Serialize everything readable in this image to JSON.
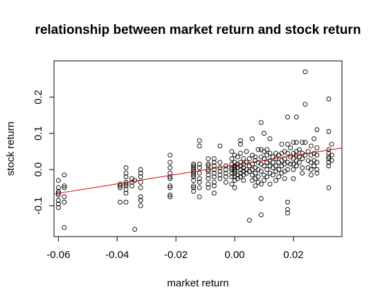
{
  "chart_data": {
    "type": "scatter",
    "title": "relationship between market return and stock return",
    "xlabel": "market return",
    "ylabel": "stock return",
    "xlim": [
      -0.0615,
      0.0365
    ],
    "ylim": [
      -0.185,
      0.3
    ],
    "xticks": [
      -0.06,
      -0.04,
      -0.02,
      0.0,
      0.02
    ],
    "xtick_labels": [
      "-0.06",
      "-0.04",
      "-0.02",
      "0.00",
      "0.02"
    ],
    "yticks": [
      -0.1,
      0.0,
      0.1,
      0.2
    ],
    "ytick_labels": [
      "-0.1",
      "0.0",
      "0.1",
      "0.2"
    ],
    "grid": false,
    "fit_line": {
      "intercept": 0.0125,
      "slope": 1.3,
      "color": "#cc0000"
    },
    "point_color": "#000000",
    "points": [
      [
        -0.06,
        -0.03
      ],
      [
        -0.06,
        -0.05
      ],
      [
        -0.06,
        -0.06
      ],
      [
        -0.06,
        -0.065
      ],
      [
        -0.06,
        -0.07
      ],
      [
        -0.06,
        -0.085
      ],
      [
        -0.06,
        -0.095
      ],
      [
        -0.06,
        -0.105
      ],
      [
        -0.058,
        -0.015
      ],
      [
        -0.058,
        -0.045
      ],
      [
        -0.058,
        -0.05
      ],
      [
        -0.058,
        -0.075
      ],
      [
        -0.058,
        -0.09
      ],
      [
        -0.058,
        -0.16
      ],
      [
        -0.039,
        -0.04
      ],
      [
        -0.039,
        -0.045
      ],
      [
        -0.039,
        -0.05
      ],
      [
        -0.039,
        -0.09
      ],
      [
        -0.037,
        0.005
      ],
      [
        -0.037,
        -0.01
      ],
      [
        -0.037,
        -0.02
      ],
      [
        -0.037,
        -0.035
      ],
      [
        -0.037,
        -0.04
      ],
      [
        -0.037,
        -0.045
      ],
      [
        -0.037,
        -0.055
      ],
      [
        -0.037,
        -0.065
      ],
      [
        -0.037,
        -0.09
      ],
      [
        -0.035,
        -0.025
      ],
      [
        -0.035,
        -0.035
      ],
      [
        -0.035,
        -0.045
      ],
      [
        -0.034,
        -0.03
      ],
      [
        -0.034,
        -0.165
      ],
      [
        -0.032,
        0.0
      ],
      [
        -0.032,
        -0.01
      ],
      [
        -0.032,
        -0.02
      ],
      [
        -0.032,
        -0.035
      ],
      [
        -0.032,
        -0.05
      ],
      [
        -0.032,
        -0.075
      ],
      [
        -0.032,
        -0.085
      ],
      [
        -0.032,
        -0.1
      ],
      [
        -0.022,
        0.04
      ],
      [
        -0.022,
        0.02
      ],
      [
        -0.022,
        0.005
      ],
      [
        -0.022,
        -0.01
      ],
      [
        -0.022,
        -0.02
      ],
      [
        -0.022,
        -0.025
      ],
      [
        -0.022,
        -0.045
      ],
      [
        -0.022,
        -0.05
      ],
      [
        -0.022,
        -0.07
      ],
      [
        -0.022,
        -0.075
      ],
      [
        -0.014,
        0.015
      ],
      [
        -0.014,
        0.01
      ],
      [
        -0.014,
        0.005
      ],
      [
        -0.014,
        0.0
      ],
      [
        -0.014,
        -0.005
      ],
      [
        -0.014,
        -0.01
      ],
      [
        -0.014,
        -0.015
      ],
      [
        -0.014,
        -0.02
      ],
      [
        -0.014,
        -0.03
      ],
      [
        -0.014,
        -0.045
      ],
      [
        -0.014,
        -0.05
      ],
      [
        -0.014,
        -0.06
      ],
      [
        -0.012,
        0.08
      ],
      [
        -0.012,
        0.065
      ],
      [
        -0.012,
        0.015
      ],
      [
        -0.012,
        0.005
      ],
      [
        -0.012,
        -0.01
      ],
      [
        -0.012,
        -0.025
      ],
      [
        -0.012,
        -0.035
      ],
      [
        -0.012,
        -0.05
      ],
      [
        -0.012,
        -0.075
      ],
      [
        -0.009,
        0.03
      ],
      [
        -0.009,
        0.015
      ],
      [
        -0.009,
        0.01
      ],
      [
        -0.009,
        0.0
      ],
      [
        -0.009,
        -0.005
      ],
      [
        -0.009,
        -0.015
      ],
      [
        -0.009,
        -0.025
      ],
      [
        -0.009,
        -0.04
      ],
      [
        -0.009,
        -0.05
      ],
      [
        -0.007,
        0.03
      ],
      [
        -0.007,
        0.02
      ],
      [
        -0.007,
        0.01
      ],
      [
        -0.007,
        0.0
      ],
      [
        -0.007,
        -0.01
      ],
      [
        -0.007,
        -0.02
      ],
      [
        -0.007,
        -0.035
      ],
      [
        -0.007,
        -0.045
      ],
      [
        -0.007,
        -0.065
      ],
      [
        -0.005,
        0.065
      ],
      [
        -0.005,
        0.02
      ],
      [
        -0.005,
        0.005
      ],
      [
        -0.005,
        -0.005
      ],
      [
        -0.005,
        -0.015
      ],
      [
        -0.005,
        -0.025
      ],
      [
        -0.003,
        0.01
      ],
      [
        -0.003,
        0.0
      ],
      [
        -0.003,
        -0.01
      ],
      [
        -0.003,
        -0.02
      ],
      [
        -0.003,
        -0.035
      ],
      [
        -0.001,
        0.05
      ],
      [
        -0.001,
        0.03
      ],
      [
        -0.001,
        0.015
      ],
      [
        -0.001,
        0.005
      ],
      [
        -0.001,
        0.0
      ],
      [
        -0.001,
        -0.01
      ],
      [
        -0.001,
        -0.02
      ],
      [
        -0.001,
        -0.04
      ],
      [
        0.0,
        0.04
      ],
      [
        0.0,
        0.02
      ],
      [
        0.0,
        0.01
      ],
      [
        0.0,
        0.005
      ],
      [
        0.0,
        0.0
      ],
      [
        0.0,
        -0.005
      ],
      [
        0.0,
        -0.01
      ],
      [
        0.0,
        -0.02
      ],
      [
        0.0,
        -0.03
      ],
      [
        0.0,
        -0.05
      ],
      [
        0.001,
        0.035
      ],
      [
        0.001,
        0.015
      ],
      [
        0.001,
        0.005
      ],
      [
        0.001,
        -0.015
      ],
      [
        0.001,
        -0.025
      ],
      [
        0.002,
        0.08
      ],
      [
        0.002,
        0.07
      ],
      [
        0.002,
        0.045
      ],
      [
        0.002,
        0.02
      ],
      [
        0.002,
        0.01
      ],
      [
        0.002,
        0.0
      ],
      [
        0.002,
        -0.01
      ],
      [
        0.002,
        -0.02
      ],
      [
        0.003,
        0.03
      ],
      [
        0.003,
        0.015
      ],
      [
        0.003,
        0.005
      ],
      [
        0.003,
        -0.005
      ],
      [
        0.003,
        -0.015
      ],
      [
        0.003,
        -0.03
      ],
      [
        0.004,
        0.05
      ],
      [
        0.004,
        0.02
      ],
      [
        0.004,
        0.0
      ],
      [
        0.004,
        -0.01
      ],
      [
        0.005,
        0.03
      ],
      [
        0.005,
        0.01
      ],
      [
        0.005,
        -0.005
      ],
      [
        0.005,
        -0.14
      ],
      [
        0.006,
        0.085
      ],
      [
        0.006,
        0.04
      ],
      [
        0.006,
        0.015
      ],
      [
        0.006,
        0.0
      ],
      [
        0.006,
        -0.015
      ],
      [
        0.006,
        -0.03
      ],
      [
        0.007,
        0.035
      ],
      [
        0.007,
        0.025
      ],
      [
        0.007,
        0.005
      ],
      [
        0.007,
        -0.01
      ],
      [
        0.007,
        -0.025
      ],
      [
        0.007,
        -0.045
      ],
      [
        0.008,
        0.055
      ],
      [
        0.008,
        0.02
      ],
      [
        0.008,
        0.0
      ],
      [
        0.008,
        -0.02
      ],
      [
        0.008,
        -0.035
      ],
      [
        0.009,
        0.13
      ],
      [
        0.009,
        0.055
      ],
      [
        0.009,
        0.035
      ],
      [
        0.009,
        0.015
      ],
      [
        0.009,
        -0.005
      ],
      [
        0.009,
        -0.04
      ],
      [
        0.009,
        -0.08
      ],
      [
        0.009,
        -0.125
      ],
      [
        0.01,
        0.1
      ],
      [
        0.01,
        0.05
      ],
      [
        0.01,
        0.03
      ],
      [
        0.01,
        0.01
      ],
      [
        0.01,
        -0.015
      ],
      [
        0.01,
        -0.03
      ],
      [
        0.011,
        0.055
      ],
      [
        0.011,
        0.04
      ],
      [
        0.011,
        0.02
      ],
      [
        0.011,
        0.0
      ],
      [
        0.011,
        -0.02
      ],
      [
        0.012,
        0.085
      ],
      [
        0.012,
        0.045
      ],
      [
        0.012,
        0.025
      ],
      [
        0.012,
        0.01
      ],
      [
        0.012,
        -0.01
      ],
      [
        0.012,
        -0.04
      ],
      [
        0.013,
        0.035
      ],
      [
        0.013,
        0.02
      ],
      [
        0.013,
        0.005
      ],
      [
        0.013,
        -0.015
      ],
      [
        0.014,
        0.045
      ],
      [
        0.014,
        0.03
      ],
      [
        0.014,
        0.01
      ],
      [
        0.014,
        -0.005
      ],
      [
        0.014,
        -0.03
      ],
      [
        0.015,
        0.04
      ],
      [
        0.015,
        0.02
      ],
      [
        0.015,
        0.0
      ],
      [
        0.015,
        -0.02
      ],
      [
        0.016,
        0.07
      ],
      [
        0.016,
        0.045
      ],
      [
        0.016,
        0.025
      ],
      [
        0.016,
        0.01
      ],
      [
        0.016,
        -0.01
      ],
      [
        0.017,
        0.05
      ],
      [
        0.017,
        0.03
      ],
      [
        0.017,
        0.015
      ],
      [
        0.017,
        -0.005
      ],
      [
        0.017,
        -0.025
      ],
      [
        0.018,
        0.145
      ],
      [
        0.018,
        0.07
      ],
      [
        0.018,
        0.045
      ],
      [
        0.018,
        0.02
      ],
      [
        0.018,
        0.0
      ],
      [
        0.018,
        -0.09
      ],
      [
        0.018,
        -0.11
      ],
      [
        0.018,
        -0.12
      ],
      [
        0.019,
        0.06
      ],
      [
        0.019,
        0.035
      ],
      [
        0.019,
        0.015
      ],
      [
        0.02,
        0.075
      ],
      [
        0.02,
        0.045
      ],
      [
        0.02,
        0.03
      ],
      [
        0.02,
        0.015
      ],
      [
        0.02,
        0.0
      ],
      [
        0.02,
        -0.025
      ],
      [
        0.021,
        0.145
      ],
      [
        0.021,
        0.075
      ],
      [
        0.021,
        0.05
      ],
      [
        0.021,
        0.04
      ],
      [
        0.021,
        0.025
      ],
      [
        0.021,
        0.01
      ],
      [
        0.022,
        0.055
      ],
      [
        0.022,
        0.035
      ],
      [
        0.022,
        0.02
      ],
      [
        0.023,
        0.075
      ],
      [
        0.023,
        0.045
      ],
      [
        0.023,
        0.03
      ],
      [
        0.023,
        0.005
      ],
      [
        0.023,
        -0.01
      ],
      [
        0.024,
        0.27
      ],
      [
        0.024,
        0.18
      ],
      [
        0.024,
        0.075
      ],
      [
        0.024,
        0.04
      ],
      [
        0.025,
        0.05
      ],
      [
        0.025,
        0.025
      ],
      [
        0.025,
        0.005
      ],
      [
        0.026,
        0.065
      ],
      [
        0.026,
        0.04
      ],
      [
        0.026,
        0.02
      ],
      [
        0.026,
        0.0
      ],
      [
        0.026,
        -0.015
      ],
      [
        0.027,
        0.085
      ],
      [
        0.027,
        0.045
      ],
      [
        0.027,
        0.025
      ],
      [
        0.027,
        0.01
      ],
      [
        0.028,
        0.11
      ],
      [
        0.028,
        0.06
      ],
      [
        0.028,
        0.04
      ],
      [
        0.028,
        0.02
      ],
      [
        0.028,
        0.0
      ],
      [
        0.028,
        -0.01
      ],
      [
        0.032,
        0.195
      ],
      [
        0.032,
        0.105
      ],
      [
        0.032,
        0.055
      ],
      [
        0.032,
        0.045
      ],
      [
        0.032,
        0.035
      ],
      [
        0.032,
        0.03
      ],
      [
        0.032,
        0.02
      ],
      [
        0.032,
        0.01
      ],
      [
        0.032,
        -0.05
      ],
      [
        0.033,
        0.07
      ],
      [
        0.033,
        0.04
      ],
      [
        0.033,
        0.025
      ]
    ]
  }
}
